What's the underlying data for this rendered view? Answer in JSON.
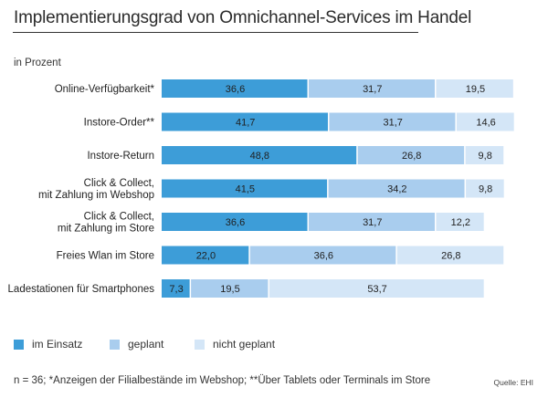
{
  "header": {
    "title": "Implementierungsgrad von Omnichannel-Services im Handel",
    "unit_note": "in Prozent"
  },
  "chart_data": {
    "type": "bar",
    "orientation": "horizontal",
    "stacked": true,
    "title": "Implementierungsgrad von Omnichannel-Services im Handel",
    "ylabel": "in Prozent",
    "xlim": [
      0,
      100
    ],
    "grid": false,
    "legend_position": "bottom-left",
    "categories": [
      [
        "Online-Verfügbarkeit*"
      ],
      [
        "Instore-Order**"
      ],
      [
        "Instore-Return"
      ],
      [
        "Click & Collect,",
        "mit Zahlung im Webshop"
      ],
      [
        "Click & Collect,",
        "mit Zahlung im Store"
      ],
      [
        "Freies Wlan im Store"
      ],
      [
        "Ladestationen für Smartphones"
      ]
    ],
    "series": [
      {
        "name": "im Einsatz",
        "color": "#3d9dd8",
        "values": [
          36.6,
          41.7,
          48.8,
          41.5,
          36.6,
          22.0,
          7.3
        ],
        "labels": [
          "36,6",
          "41,7",
          "48,8",
          "41,5",
          "36,6",
          "22,0",
          "7,3"
        ]
      },
      {
        "name": "geplant",
        "color": "#a9cdee",
        "values": [
          31.7,
          31.7,
          26.8,
          34.2,
          31.7,
          36.6,
          19.5
        ],
        "labels": [
          "31,7",
          "31,7",
          "26,8",
          "34,2",
          "31,7",
          "36,6",
          "19,5"
        ]
      },
      {
        "name": "nicht geplant",
        "color": "#d4e6f7",
        "values": [
          19.5,
          14.6,
          9.8,
          9.8,
          12.2,
          26.8,
          53.7
        ],
        "labels": [
          "19,5",
          "14,6",
          "9,8",
          "9,8",
          "12,2",
          "26,8",
          "53,7"
        ]
      }
    ]
  },
  "footer": {
    "footnote": "n = 36; *Anzeigen der Filialbestände im Webshop; **Über Tablets oder Terminals im Store",
    "source": "Quelle: EHI"
  }
}
